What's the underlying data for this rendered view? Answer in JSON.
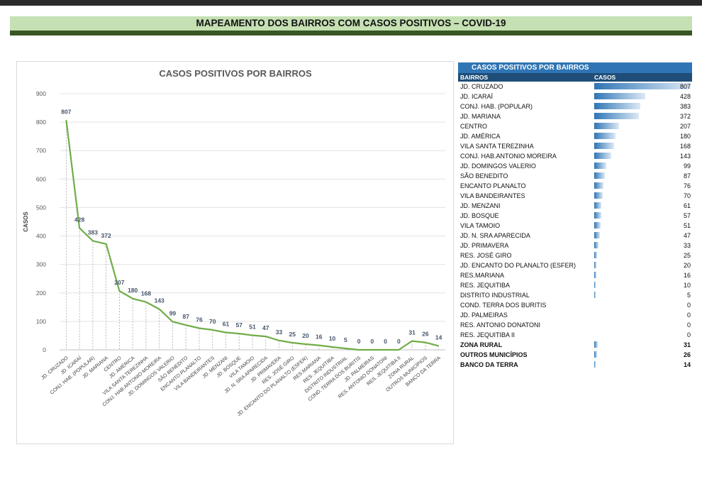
{
  "header": {
    "title": "MAPEAMENTO DOS BAIRROS COM CASOS POSITIVOS – COVID-19"
  },
  "colors": {
    "line": "#70ad47",
    "bar": "#2f75b5",
    "banner": "#c5e0b3",
    "banner_strip": "#375623",
    "table_header": "#1f4e78"
  },
  "chart_data": {
    "type": "line",
    "title": "CASOS POSITIVOS POR BAIRROS",
    "xlabel": "",
    "ylabel": "CASOS",
    "ylim": [
      0,
      900
    ],
    "yticks": [
      0,
      100,
      200,
      300,
      400,
      500,
      600,
      700,
      800,
      900
    ],
    "grid": true,
    "categories": [
      "JD. CRUZADO",
      "JD. ICARAÍ",
      "CONJ. HAB. (POPULAR)",
      "JD. MARIANA",
      "CENTRO",
      "JD. AMÉRICA",
      "VILA SANTA TEREZINHA",
      "CONJ. HAB.ANTONIO MOREIRA",
      "JD. DOMINGOS VALERIO",
      "SÃO BENEDITO",
      "ENCANTO PLANALTO",
      "VILA BANDEIRANTES",
      "JD. MENZANI",
      "JD. BOSQUE",
      "VILA TAMOIO",
      "JD. N. SRA APARECIDA",
      "JD. PRIMAVERA",
      "RES. JOSÉ GIRO",
      "JD. ENCANTO DO PLANALTO (ESFER)",
      "RES.MARIANA",
      "RES. JEQUITIBA",
      "DISTRITO INDUSTRIAL",
      "COND. TERRA DOS BURITIS",
      "JD. PALMEIRAS",
      "RES. ANTONIO DONATONI",
      "RES. JEQUITIBA II",
      "ZONA RURAL",
      "OUTROS MUNICÍPIOS",
      "BANCO DA TERRA"
    ],
    "values": [
      807,
      428,
      383,
      372,
      207,
      180,
      168,
      143,
      99,
      87,
      76,
      70,
      61,
      57,
      51,
      47,
      33,
      25,
      20,
      16,
      10,
      5,
      0,
      0,
      0,
      0,
      31,
      26,
      14
    ],
    "legend": "none"
  },
  "table": {
    "title": "CASOS POSITIVOS POR BAIRROS",
    "col1": "BAIRROS",
    "col2": "CASOS",
    "max": 807,
    "rows": [
      {
        "name": "JD. CRUZADO",
        "value": 807,
        "bold": false
      },
      {
        "name": "JD. ICARAÍ",
        "value": 428,
        "bold": false
      },
      {
        "name": "CONJ. HAB. (POPULAR)",
        "value": 383,
        "bold": false
      },
      {
        "name": "JD. MARIANA",
        "value": 372,
        "bold": false
      },
      {
        "name": "CENTRO",
        "value": 207,
        "bold": false
      },
      {
        "name": "JD. AMÉRICA",
        "value": 180,
        "bold": false
      },
      {
        "name": "VILA SANTA TEREZINHA",
        "value": 168,
        "bold": false
      },
      {
        "name": "CONJ. HAB.ANTONIO MOREIRA",
        "value": 143,
        "bold": false
      },
      {
        "name": "JD. DOMINGOS VALERIO",
        "value": 99,
        "bold": false
      },
      {
        "name": "SÃO BENEDITO",
        "value": 87,
        "bold": false
      },
      {
        "name": "ENCANTO PLANALTO",
        "value": 76,
        "bold": false
      },
      {
        "name": "VILA BANDEIRANTES",
        "value": 70,
        "bold": false
      },
      {
        "name": "JD. MENZANI",
        "value": 61,
        "bold": false
      },
      {
        "name": "JD. BOSQUE",
        "value": 57,
        "bold": false
      },
      {
        "name": "VILA TAMOIO",
        "value": 51,
        "bold": false
      },
      {
        "name": "JD. N. SRA APARECIDA",
        "value": 47,
        "bold": false
      },
      {
        "name": "JD. PRIMAVERA",
        "value": 33,
        "bold": false
      },
      {
        "name": "RES. JOSÉ GIRO",
        "value": 25,
        "bold": false
      },
      {
        "name": "JD. ENCANTO DO PLANALTO (ESFER)",
        "value": 20,
        "bold": false
      },
      {
        "name": "RES.MARIANA",
        "value": 16,
        "bold": false
      },
      {
        "name": "RES. JEQUITIBA",
        "value": 10,
        "bold": false
      },
      {
        "name": "DISTRITO INDUSTRIAL",
        "value": 5,
        "bold": false
      },
      {
        "name": "COND. TERRA DOS BURITIS",
        "value": 0,
        "bold": false
      },
      {
        "name": "JD. PALMEIRAS",
        "value": 0,
        "bold": false
      },
      {
        "name": "RES. ANTONIO DONATONI",
        "value": 0,
        "bold": false
      },
      {
        "name": "RES. JEQUITIBA II",
        "value": 0,
        "bold": false
      },
      {
        "name": "ZONA RURAL",
        "value": 31,
        "bold": true
      },
      {
        "name": "OUTROS MUNICÍPIOS",
        "value": 26,
        "bold": true
      },
      {
        "name": "BANCO DA TERRA",
        "value": 14,
        "bold": true
      }
    ]
  }
}
